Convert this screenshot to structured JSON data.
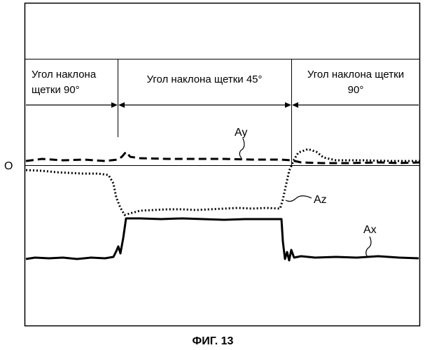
{
  "figure": {
    "caption": "ФИГ. 13",
    "zero_label": "O",
    "regions": [
      {
        "lines": [
          "Угол наклона",
          "щетки 90°"
        ]
      },
      {
        "lines": [
          "Угол наклона щетки 45°"
        ]
      },
      {
        "lines": [
          "Угол наклона щетки",
          "90°"
        ]
      }
    ],
    "signals": {
      "ay": {
        "label": "Ay",
        "style": "dashed"
      },
      "az": {
        "label": "Az",
        "style": "dotted"
      },
      "ax": {
        "label": "Ax",
        "style": "solid"
      }
    },
    "colors": {
      "ink": "#000000",
      "background": "#ffffff"
    }
  }
}
